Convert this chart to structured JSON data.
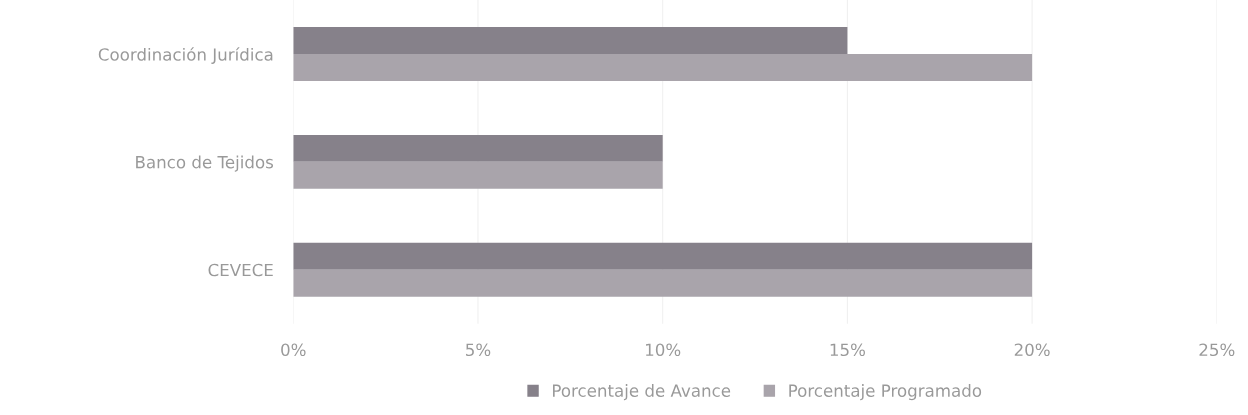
{
  "chart_data": {
    "type": "bar",
    "orientation": "horizontal",
    "categories": [
      "Coordinación Jurídica",
      "Banco de Tejidos",
      "CEVECE"
    ],
    "series": [
      {
        "name": "Porcentaje de Avance",
        "color": "#86818a",
        "values": [
          15,
          10,
          20
        ]
      },
      {
        "name": "Porcentaje Programado",
        "color": "#a9a4ab",
        "values": [
          20,
          10,
          20
        ]
      }
    ],
    "xlim": [
      0,
      25
    ],
    "xticks": [
      {
        "value": 0,
        "label": "0%"
      },
      {
        "value": 5,
        "label": "5%"
      },
      {
        "value": 10,
        "label": "10%"
      },
      {
        "value": 15,
        "label": "15%"
      },
      {
        "value": 20,
        "label": "20%"
      },
      {
        "value": 25,
        "label": "25%"
      }
    ],
    "grid": "x",
    "legend": "bottom"
  }
}
